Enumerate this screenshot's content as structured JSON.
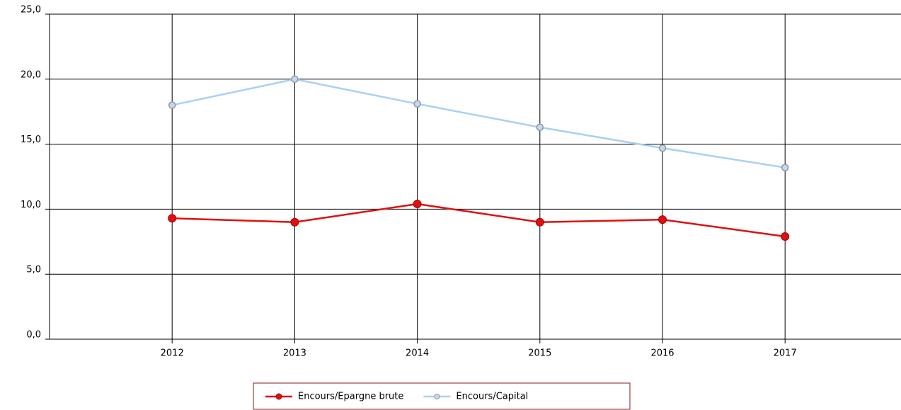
{
  "chart_data": {
    "type": "line",
    "x": [
      2012,
      2013,
      2014,
      2015,
      2016,
      2017
    ],
    "xlim": [
      2011,
      2018
    ],
    "xticks": [
      2012,
      2013,
      2014,
      2015,
      2016,
      2017
    ],
    "ylim": [
      0,
      25
    ],
    "yticks": [
      {
        "value": 0,
        "label": "0,0"
      },
      {
        "value": 5,
        "label": "5,0"
      },
      {
        "value": 10,
        "label": "10,0"
      },
      {
        "value": 15,
        "label": "15,0"
      },
      {
        "value": 20,
        "label": "20,0"
      },
      {
        "value": 25,
        "label": "25,0"
      }
    ],
    "grid": true,
    "legend": "bottom",
    "series": [
      {
        "name": "Encours/Epargne brute",
        "color": "#dd1111",
        "values": [
          9.3,
          9.0,
          10.4,
          9.0,
          9.2,
          7.9
        ]
      },
      {
        "name": "Encours/Capital",
        "color": "#a9d0f5",
        "values": [
          18.0,
          20.0,
          18.1,
          16.3,
          14.7,
          13.2
        ]
      }
    ]
  }
}
